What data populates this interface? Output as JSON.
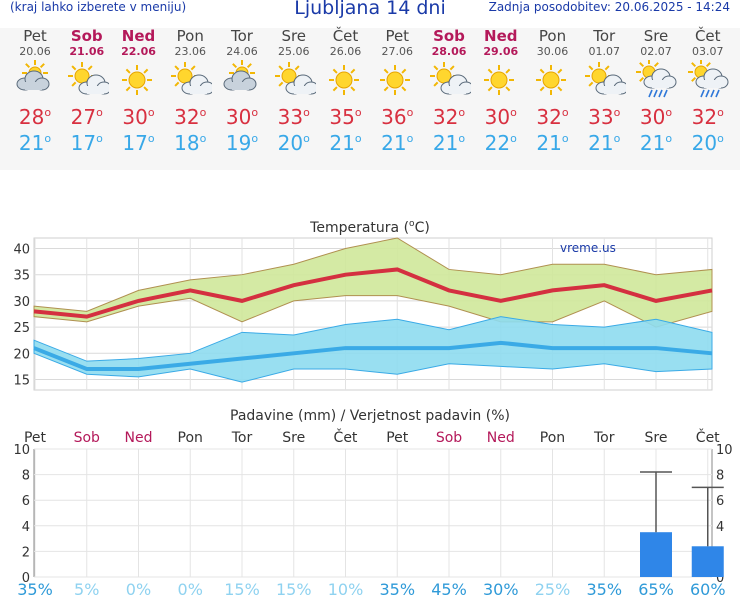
{
  "header": {
    "hint": "(kraj lahko izberete v meniju)",
    "title": "Ljubljana 14 dni",
    "updated": "Zadnja posodobitev: 20.06.2025 - 14:24"
  },
  "days": [
    {
      "name": "Pet",
      "date": "20.06",
      "weekend": false,
      "icon": "partly-cloudy-icon",
      "tmax": "28",
      "tmin": "21"
    },
    {
      "name": "Sob",
      "date": "21.06",
      "weekend": true,
      "icon": "sunny-cloud-icon",
      "tmax": "27",
      "tmin": "17"
    },
    {
      "name": "Ned",
      "date": "22.06",
      "weekend": true,
      "icon": "sunny-icon",
      "tmax": "30",
      "tmin": "17"
    },
    {
      "name": "Pon",
      "date": "23.06",
      "weekend": false,
      "icon": "sunny-cloud-icon",
      "tmax": "32",
      "tmin": "18"
    },
    {
      "name": "Tor",
      "date": "24.06",
      "weekend": false,
      "icon": "partly-cloudy-icon",
      "tmax": "30",
      "tmin": "19"
    },
    {
      "name": "Sre",
      "date": "25.06",
      "weekend": false,
      "icon": "sunny-cloud-icon",
      "tmax": "33",
      "tmin": "20"
    },
    {
      "name": "Čet",
      "date": "26.06",
      "weekend": false,
      "icon": "sunny-icon",
      "tmax": "35",
      "tmin": "21"
    },
    {
      "name": "Pet",
      "date": "27.06",
      "weekend": false,
      "icon": "sunny-icon",
      "tmax": "36",
      "tmin": "21"
    },
    {
      "name": "Sob",
      "date": "28.06",
      "weekend": true,
      "icon": "sunny-cloud-icon",
      "tmax": "32",
      "tmin": "21"
    },
    {
      "name": "Ned",
      "date": "29.06",
      "weekend": true,
      "icon": "sunny-icon",
      "tmax": "30",
      "tmin": "22"
    },
    {
      "name": "Pon",
      "date": "30.06",
      "weekend": false,
      "icon": "sunny-icon",
      "tmax": "32",
      "tmin": "21"
    },
    {
      "name": "Tor",
      "date": "01.07",
      "weekend": false,
      "icon": "sunny-cloud-icon",
      "tmax": "33",
      "tmin": "21"
    },
    {
      "name": "Sre",
      "date": "02.07",
      "weekend": false,
      "icon": "sun-rain-icon",
      "tmax": "30",
      "tmin": "21"
    },
    {
      "name": "Čet",
      "date": "03.07",
      "weekend": false,
      "icon": "sun-rain-icon",
      "tmax": "32",
      "tmin": "20"
    }
  ],
  "deg": "o",
  "temp_chart": {
    "title_prefix": "Temperatura (",
    "title_sup": "o",
    "title_suffix": "C)",
    "watermark": "vreme.us",
    "yticks": [
      "40",
      "35",
      "30",
      "25",
      "20",
      "15"
    ]
  },
  "rain_chart": {
    "title": "Padavine (mm) / Verjetnost padavin (%)",
    "yticks": [
      "10",
      "8",
      "6",
      "4",
      "2",
      "0"
    ]
  },
  "chart_data": [
    {
      "type": "area",
      "ylim": [
        13,
        42
      ],
      "series": [
        {
          "values": [
            28,
            27,
            30,
            32,
            30,
            33,
            35,
            36,
            32,
            30,
            32,
            33,
            30,
            32
          ]
        },
        {
          "values": [
            29,
            28,
            32,
            34,
            35,
            37,
            40,
            42,
            36,
            35,
            37,
            37,
            35,
            36
          ]
        },
        {
          "values": [
            27,
            26,
            29,
            30.5,
            26,
            30,
            31,
            31,
            29,
            26,
            26,
            30,
            25,
            28
          ]
        },
        {
          "values": [
            21,
            17,
            17,
            18,
            19,
            20,
            21,
            21,
            21,
            22,
            21,
            21,
            21,
            20
          ]
        },
        {
          "values": [
            22.5,
            18.5,
            19,
            20,
            24,
            23.5,
            25.5,
            26.5,
            24.5,
            27,
            25.5,
            25,
            26.5,
            24
          ]
        },
        {
          "values": [
            20,
            16,
            15.5,
            17,
            14.5,
            17,
            17,
            16,
            18,
            17.5,
            17,
            18,
            16.5,
            17
          ]
        }
      ]
    },
    {
      "type": "bar",
      "ylim": [
        0,
        10
      ],
      "values": [
        0,
        0,
        0,
        0,
        0,
        0,
        0,
        0,
        0,
        0,
        0,
        0,
        3.5,
        2.4
      ],
      "error_max": [
        0,
        0,
        0,
        0,
        0,
        0,
        0,
        0,
        0,
        0,
        0,
        0,
        8.2,
        7
      ],
      "probability": [
        "35%",
        "5%",
        "0%",
        "0%",
        "15%",
        "15%",
        "10%",
        "35%",
        "45%",
        "30%",
        "25%",
        "35%",
        "65%",
        "60%"
      ]
    }
  ],
  "colors": {
    "max_band": "#cfe89a",
    "max_line": "#d43040",
    "min_band": "#8edcf0",
    "min_line": "#3aaae6",
    "bar": "#2f86e8",
    "text_blue": "#1a3aa8",
    "weekend": "#b4195a"
  }
}
